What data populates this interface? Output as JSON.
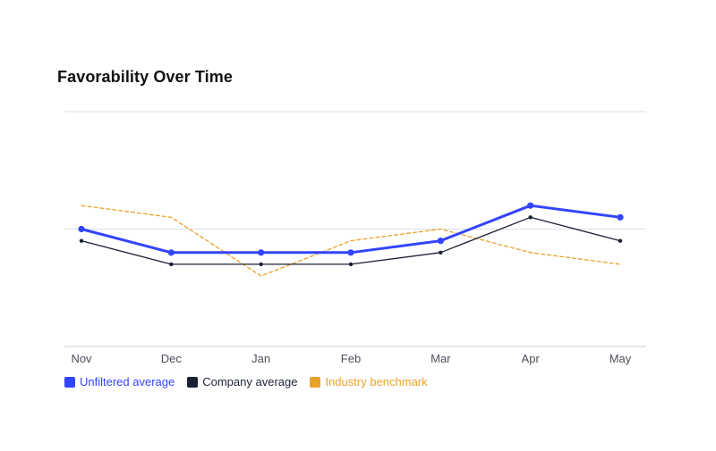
{
  "chart_data": {
    "type": "line",
    "title": "Favorability Over Time",
    "categories": [
      "Nov",
      "Dec",
      "Jan",
      "Feb",
      "Mar",
      "Apr",
      "May"
    ],
    "ylim": [
      0,
      10
    ],
    "grid": true,
    "legend_position": "bottom-left",
    "series": [
      {
        "name": "Unfiltered average",
        "color": "#3344ff",
        "style": "solid-thick-markers",
        "values": [
          5.0,
          4.0,
          4.0,
          4.0,
          4.5,
          6.0,
          5.5
        ]
      },
      {
        "name": "Company average",
        "color": "#1b2235",
        "style": "solid-thin-markers",
        "values": [
          4.5,
          3.5,
          3.5,
          3.5,
          4.0,
          5.5,
          4.5
        ]
      },
      {
        "name": "Industry benchmark",
        "color": "#e8a22c",
        "style": "dashed",
        "values": [
          6.0,
          5.5,
          3.0,
          4.5,
          5.0,
          4.0,
          3.5
        ]
      }
    ]
  }
}
